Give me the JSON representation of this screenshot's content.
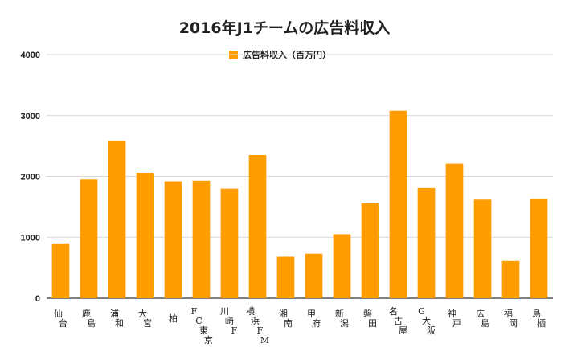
{
  "title": "2016年J1チームの広告料収入",
  "legend_label": "広告料収入（百万円）",
  "colors": {
    "bar": "#FF9D00",
    "grid": "#d9d9d9",
    "axis": "#333333"
  },
  "chart_data": {
    "type": "bar",
    "title": "2016年J1チームの広告料収入",
    "xlabel": "",
    "ylabel": "",
    "ylim": [
      0,
      4000
    ],
    "yticks": [
      0,
      1000,
      2000,
      3000,
      4000
    ],
    "grid": true,
    "legend_position": "top-center",
    "categories": [
      "仙台",
      "鹿島",
      "浦和",
      "大宮",
      "柏",
      "FC東京",
      "川崎F",
      "横浜FM",
      "湘南",
      "甲府",
      "新潟",
      "磐田",
      "名古屋",
      "G大阪",
      "神戸",
      "広島",
      "福岡",
      "鳥栖"
    ],
    "series": [
      {
        "name": "広告料収入（百万円）",
        "values": [
          900,
          1950,
          2580,
          2060,
          1920,
          1930,
          1800,
          2350,
          680,
          730,
          1050,
          1560,
          3080,
          1810,
          2210,
          1620,
          610,
          1630
        ]
      }
    ]
  }
}
